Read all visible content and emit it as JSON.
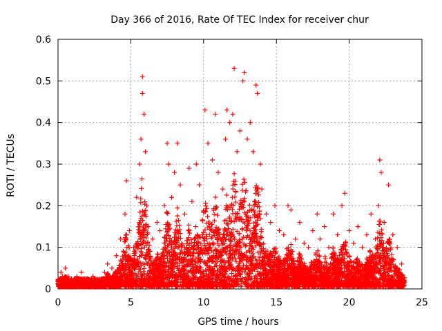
{
  "chart_data": {
    "type": "scatter",
    "title": "Day 366 of 2016, Rate Of TEC Index for receiver chur",
    "xlabel": "GPS time / hours",
    "ylabel": "ROTI / TECUs",
    "xlim": [
      0,
      25
    ],
    "ylim": [
      0,
      0.6
    ],
    "xticks": [
      "0",
      "5",
      "10",
      "15",
      "20",
      "25"
    ],
    "yticks": [
      "0",
      "0.1",
      "0.2",
      "0.3",
      "0.4",
      "0.5",
      "0.6"
    ],
    "grid": true,
    "marker": "plus",
    "color": "#ff0000",
    "series": [
      {
        "points": [
          [
            0.1,
            0.02
          ],
          [
            0.2,
            0.04
          ],
          [
            0.3,
            0.03
          ],
          [
            0.5,
            0.05
          ],
          [
            0.7,
            0.03
          ],
          [
            1.0,
            0.02
          ],
          [
            1.3,
            0.03
          ],
          [
            1.6,
            0.04
          ],
          [
            2.0,
            0.02
          ],
          [
            2.4,
            0.03
          ],
          [
            2.8,
            0.02
          ],
          [
            3.2,
            0.04
          ],
          [
            3.4,
            0.06
          ],
          [
            3.7,
            0.05
          ],
          [
            4.0,
            0.08
          ],
          [
            4.3,
            0.12
          ],
          [
            4.6,
            0.18
          ],
          [
            4.7,
            0.26
          ],
          [
            4.9,
            0.14
          ],
          [
            5.2,
            0.1
          ],
          [
            5.4,
            0.22
          ],
          [
            5.6,
            0.3
          ],
          [
            5.7,
            0.36
          ],
          [
            5.8,
            0.51
          ],
          [
            5.8,
            0.47
          ],
          [
            5.9,
            0.42
          ],
          [
            6.0,
            0.33
          ],
          [
            6.1,
            0.2
          ],
          [
            6.2,
            0.15
          ],
          [
            6.5,
            0.12
          ],
          [
            6.8,
            0.16
          ],
          [
            7.0,
            0.14
          ],
          [
            7.3,
            0.2
          ],
          [
            7.5,
            0.35
          ],
          [
            7.6,
            0.3
          ],
          [
            7.8,
            0.22
          ],
          [
            8.0,
            0.28
          ],
          [
            8.2,
            0.35
          ],
          [
            8.4,
            0.25
          ],
          [
            8.7,
            0.18
          ],
          [
            9.0,
            0.29
          ],
          [
            9.2,
            0.21
          ],
          [
            9.5,
            0.3
          ],
          [
            9.7,
            0.25
          ],
          [
            10.1,
            0.43
          ],
          [
            10.3,
            0.35
          ],
          [
            10.6,
            0.31
          ],
          [
            10.8,
            0.42
          ],
          [
            11.0,
            0.28
          ],
          [
            11.3,
            0.24
          ],
          [
            11.5,
            0.36
          ],
          [
            11.6,
            0.43
          ],
          [
            11.8,
            0.4
          ],
          [
            12.0,
            0.42
          ],
          [
            12.1,
            0.53
          ],
          [
            12.3,
            0.33
          ],
          [
            12.5,
            0.38
          ],
          [
            12.7,
            0.5
          ],
          [
            12.8,
            0.52
          ],
          [
            13.0,
            0.36
          ],
          [
            13.2,
            0.4
          ],
          [
            13.4,
            0.33
          ],
          [
            13.6,
            0.49
          ],
          [
            13.7,
            0.47
          ],
          [
            13.9,
            0.3
          ],
          [
            14.0,
            0.24
          ],
          [
            14.3,
            0.18
          ],
          [
            14.6,
            0.16
          ],
          [
            14.9,
            0.2
          ],
          [
            15.2,
            0.14
          ],
          [
            15.5,
            0.13
          ],
          [
            15.8,
            0.2
          ],
          [
            16.0,
            0.19
          ],
          [
            16.3,
            0.12
          ],
          [
            16.6,
            0.16
          ],
          [
            16.9,
            0.11
          ],
          [
            17.2,
            0.1
          ],
          [
            17.5,
            0.14
          ],
          [
            17.8,
            0.18
          ],
          [
            18.0,
            0.12
          ],
          [
            18.3,
            0.15
          ],
          [
            18.6,
            0.1
          ],
          [
            18.9,
            0.18
          ],
          [
            19.2,
            0.13
          ],
          [
            19.5,
            0.2
          ],
          [
            19.7,
            0.23
          ],
          [
            20.0,
            0.14
          ],
          [
            20.3,
            0.11
          ],
          [
            20.6,
            0.15
          ],
          [
            20.9,
            0.1
          ],
          [
            21.2,
            0.13
          ],
          [
            21.5,
            0.18
          ],
          [
            21.8,
            0.12
          ],
          [
            22.0,
            0.2
          ],
          [
            22.1,
            0.31
          ],
          [
            22.2,
            0.28
          ],
          [
            22.4,
            0.16
          ],
          [
            22.7,
            0.25
          ],
          [
            23.0,
            0.13
          ],
          [
            23.3,
            0.1
          ],
          [
            23.6,
            0.06
          ]
        ]
      }
    ]
  }
}
